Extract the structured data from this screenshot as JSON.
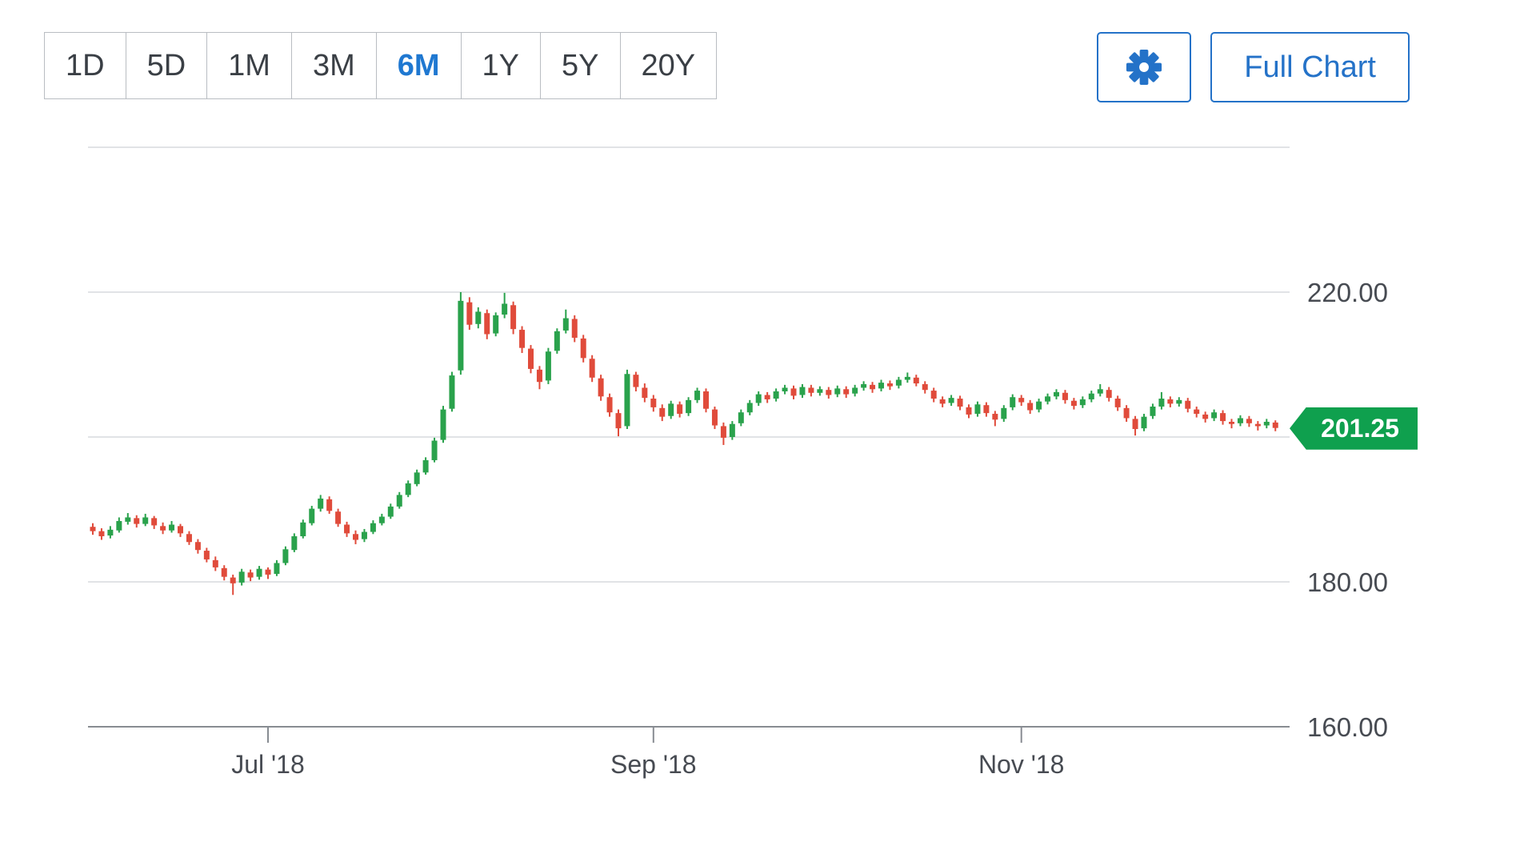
{
  "toolbar": {
    "ranges": [
      {
        "label": "1D",
        "active": false
      },
      {
        "label": "5D",
        "active": false
      },
      {
        "label": "1M",
        "active": false
      },
      {
        "label": "3M",
        "active": false
      },
      {
        "label": "6M",
        "active": true
      },
      {
        "label": "1Y",
        "active": false
      },
      {
        "label": "5Y",
        "active": false
      },
      {
        "label": "20Y",
        "active": false
      }
    ],
    "settings_icon": "gear-icon",
    "full_chart_label": "Full Chart"
  },
  "colors": {
    "up": "#2aa24c",
    "down": "#e04b3b",
    "badge": "#0fa04e",
    "accent_blue": "#2472c8",
    "active_range_blue": "#1f78d1",
    "grid": "#e1e3e6",
    "axis_line": "#888c92",
    "axis_text": "#474b52"
  },
  "chart_data": {
    "type": "candlestick",
    "selected_range": "6M",
    "ylim": [
      160,
      240
    ],
    "grid_levels": [
      240,
      220,
      200,
      180,
      160
    ],
    "y_tick_levels": [
      220,
      180,
      160
    ],
    "y_tick_labels": [
      "220.00",
      "180.00",
      "160.00"
    ],
    "x_tick_labels": [
      "Jul '18",
      "Sep '18",
      "Nov '18"
    ],
    "month_ticks": [
      {
        "date": "2018-07-02",
        "label": "Jul '18"
      },
      {
        "date": "2018-09-04",
        "label": "Sep '18"
      },
      {
        "date": "2018-11-01",
        "label": "Nov '18"
      }
    ],
    "last_price": "201.25",
    "last_price_value": 201.25,
    "legend_position": "none",
    "grid": true,
    "candles": [
      [
        "2018-06-04",
        187.6,
        188.1,
        186.5,
        187.0
      ],
      [
        "2018-06-05",
        187.0,
        187.4,
        185.8,
        186.3
      ],
      [
        "2018-06-06",
        186.4,
        187.7,
        186.0,
        187.2
      ],
      [
        "2018-06-07",
        187.1,
        188.9,
        186.8,
        188.4
      ],
      [
        "2018-06-08",
        188.3,
        189.5,
        187.9,
        188.9
      ],
      [
        "2018-06-11",
        188.8,
        189.2,
        187.5,
        188.0
      ],
      [
        "2018-06-12",
        188.0,
        189.4,
        187.7,
        188.9
      ],
      [
        "2018-06-13",
        188.8,
        189.1,
        187.3,
        187.8
      ],
      [
        "2018-06-14",
        187.7,
        188.2,
        186.6,
        187.1
      ],
      [
        "2018-06-15",
        187.1,
        188.4,
        186.8,
        187.9
      ],
      [
        "2018-06-18",
        187.7,
        188.0,
        186.2,
        186.7
      ],
      [
        "2018-06-19",
        186.6,
        187.0,
        185.1,
        185.5
      ],
      [
        "2018-06-20",
        185.5,
        185.9,
        183.9,
        184.4
      ],
      [
        "2018-06-21",
        184.3,
        184.7,
        182.7,
        183.1
      ],
      [
        "2018-06-22",
        183.0,
        183.5,
        181.5,
        182.0
      ],
      [
        "2018-06-25",
        181.9,
        182.3,
        180.2,
        180.7
      ],
      [
        "2018-06-26",
        180.6,
        181.0,
        178.2,
        179.8
      ],
      [
        "2018-06-27",
        179.9,
        181.8,
        179.5,
        181.4
      ],
      [
        "2018-06-28",
        181.3,
        181.7,
        180.1,
        180.6
      ],
      [
        "2018-06-29",
        180.7,
        182.2,
        180.3,
        181.8
      ],
      [
        "2018-07-02",
        181.7,
        182.0,
        180.4,
        181.0
      ],
      [
        "2018-07-03",
        181.1,
        183.0,
        180.8,
        182.6
      ],
      [
        "2018-07-05",
        182.6,
        184.9,
        182.3,
        184.5
      ],
      [
        "2018-07-06",
        184.4,
        186.7,
        184.1,
        186.3
      ],
      [
        "2018-07-09",
        186.3,
        188.6,
        186.0,
        188.2
      ],
      [
        "2018-07-10",
        188.1,
        190.5,
        187.8,
        190.1
      ],
      [
        "2018-07-11",
        190.1,
        192.0,
        189.7,
        191.5
      ],
      [
        "2018-07-12",
        191.4,
        191.8,
        189.4,
        189.8
      ],
      [
        "2018-07-13",
        189.7,
        190.1,
        187.6,
        188.0
      ],
      [
        "2018-07-16",
        187.9,
        188.3,
        186.2,
        186.7
      ],
      [
        "2018-07-17",
        186.6,
        187.1,
        185.2,
        185.8
      ],
      [
        "2018-07-18",
        185.9,
        187.3,
        185.5,
        186.9
      ],
      [
        "2018-07-19",
        186.9,
        188.5,
        186.6,
        188.1
      ],
      [
        "2018-07-20",
        188.1,
        189.4,
        187.8,
        189.0
      ],
      [
        "2018-07-23",
        189.0,
        190.8,
        188.7,
        190.4
      ],
      [
        "2018-07-24",
        190.4,
        192.4,
        190.1,
        192.0
      ],
      [
        "2018-07-25",
        192.0,
        194.0,
        191.7,
        193.6
      ],
      [
        "2018-07-26",
        193.5,
        195.5,
        193.2,
        195.1
      ],
      [
        "2018-07-27",
        195.1,
        197.2,
        194.8,
        196.8
      ],
      [
        "2018-07-30",
        196.8,
        199.9,
        196.5,
        199.5
      ],
      [
        "2018-07-31",
        199.6,
        204.3,
        199.2,
        203.8
      ],
      [
        "2018-08-01",
        203.9,
        209.0,
        203.5,
        208.5
      ],
      [
        "2018-08-02",
        209.2,
        220.0,
        208.6,
        218.8
      ],
      [
        "2018-08-03",
        218.6,
        219.3,
        214.8,
        215.5
      ],
      [
        "2018-08-06",
        215.6,
        217.9,
        215.0,
        217.3
      ],
      [
        "2018-08-07",
        217.1,
        217.6,
        213.5,
        214.2
      ],
      [
        "2018-08-08",
        214.3,
        217.2,
        213.9,
        216.8
      ],
      [
        "2018-08-09",
        216.9,
        219.9,
        216.4,
        218.4
      ],
      [
        "2018-08-10",
        218.2,
        218.7,
        214.2,
        214.9
      ],
      [
        "2018-08-13",
        214.8,
        215.3,
        211.6,
        212.3
      ],
      [
        "2018-08-14",
        212.2,
        212.7,
        208.8,
        209.4
      ],
      [
        "2018-08-15",
        209.3,
        209.8,
        206.6,
        207.6
      ],
      [
        "2018-08-16",
        207.8,
        212.3,
        207.3,
        211.8
      ],
      [
        "2018-08-17",
        211.9,
        215.0,
        211.5,
        214.6
      ],
      [
        "2018-08-20",
        214.7,
        217.6,
        214.3,
        216.4
      ],
      [
        "2018-08-21",
        216.3,
        216.8,
        213.1,
        213.7
      ],
      [
        "2018-08-22",
        213.6,
        214.1,
        210.3,
        210.9
      ],
      [
        "2018-08-23",
        210.8,
        211.3,
        207.6,
        208.2
      ],
      [
        "2018-08-24",
        208.1,
        208.6,
        205.0,
        205.6
      ],
      [
        "2018-08-27",
        205.5,
        206.0,
        202.8,
        203.4
      ],
      [
        "2018-08-28",
        203.3,
        203.8,
        200.1,
        201.2
      ],
      [
        "2018-08-29",
        201.5,
        209.3,
        201.1,
        208.7
      ],
      [
        "2018-08-30",
        208.6,
        209.0,
        206.3,
        206.9
      ],
      [
        "2018-08-31",
        206.8,
        207.4,
        204.8,
        205.4
      ],
      [
        "2018-09-04",
        205.3,
        205.8,
        203.5,
        204.1
      ],
      [
        "2018-09-05",
        204.0,
        204.5,
        202.2,
        202.8
      ],
      [
        "2018-09-06",
        202.9,
        205.0,
        202.5,
        204.6
      ],
      [
        "2018-09-07",
        204.5,
        204.9,
        202.7,
        203.2
      ],
      [
        "2018-09-10",
        203.3,
        205.5,
        202.9,
        205.1
      ],
      [
        "2018-09-11",
        205.1,
        206.8,
        204.7,
        206.4
      ],
      [
        "2018-09-12",
        206.3,
        206.7,
        203.4,
        203.9
      ],
      [
        "2018-09-13",
        203.8,
        204.2,
        201.1,
        201.6
      ],
      [
        "2018-09-14",
        201.5,
        202.0,
        198.9,
        199.9
      ],
      [
        "2018-09-17",
        200.0,
        202.2,
        199.6,
        201.8
      ],
      [
        "2018-09-18",
        201.9,
        203.8,
        201.5,
        203.4
      ],
      [
        "2018-09-19",
        203.4,
        205.1,
        203.0,
        204.7
      ],
      [
        "2018-09-20",
        204.7,
        206.3,
        204.3,
        205.9
      ],
      [
        "2018-09-21",
        205.8,
        206.2,
        204.7,
        205.2
      ],
      [
        "2018-09-24",
        205.3,
        206.7,
        204.9,
        206.3
      ],
      [
        "2018-09-25",
        206.3,
        207.2,
        205.9,
        206.8
      ],
      [
        "2018-09-26",
        206.7,
        207.1,
        205.2,
        205.7
      ],
      [
        "2018-09-27",
        205.8,
        207.3,
        205.4,
        206.9
      ],
      [
        "2018-09-28",
        206.8,
        207.2,
        205.6,
        206.1
      ],
      [
        "2018-10-01",
        206.1,
        207.0,
        205.7,
        206.6
      ],
      [
        "2018-10-02",
        206.5,
        206.9,
        205.3,
        205.8
      ],
      [
        "2018-10-03",
        205.9,
        207.1,
        205.5,
        206.7
      ],
      [
        "2018-10-04",
        206.6,
        207.0,
        205.4,
        205.9
      ],
      [
        "2018-10-05",
        206.0,
        207.2,
        205.6,
        206.8
      ],
      [
        "2018-10-08",
        206.8,
        207.7,
        206.4,
        207.3
      ],
      [
        "2018-10-09",
        207.2,
        207.6,
        206.1,
        206.6
      ],
      [
        "2018-10-10",
        206.7,
        207.9,
        206.3,
        207.5
      ],
      [
        "2018-10-11",
        207.4,
        207.8,
        206.5,
        207.0
      ],
      [
        "2018-10-12",
        207.1,
        208.3,
        206.7,
        207.9
      ],
      [
        "2018-10-15",
        207.9,
        208.9,
        207.5,
        208.3
      ],
      [
        "2018-10-16",
        208.2,
        208.6,
        207.0,
        207.4
      ],
      [
        "2018-10-17",
        207.3,
        207.7,
        206.0,
        206.5
      ],
      [
        "2018-10-18",
        206.4,
        206.8,
        204.8,
        205.3
      ],
      [
        "2018-10-19",
        205.2,
        205.6,
        204.1,
        204.6
      ],
      [
        "2018-10-22",
        204.7,
        205.8,
        204.3,
        205.4
      ],
      [
        "2018-10-23",
        205.3,
        205.7,
        203.7,
        204.2
      ],
      [
        "2018-10-24",
        204.1,
        204.5,
        202.6,
        203.1
      ],
      [
        "2018-10-25",
        203.2,
        204.9,
        202.8,
        204.5
      ],
      [
        "2018-10-26",
        204.4,
        204.8,
        202.8,
        203.3
      ],
      [
        "2018-10-29",
        203.2,
        203.6,
        201.5,
        202.4
      ],
      [
        "2018-10-30",
        202.5,
        204.4,
        202.1,
        204.0
      ],
      [
        "2018-10-31",
        204.1,
        205.9,
        203.7,
        205.5
      ],
      [
        "2018-11-01",
        205.4,
        205.8,
        204.3,
        204.8
      ],
      [
        "2018-11-02",
        204.7,
        205.1,
        203.2,
        203.7
      ],
      [
        "2018-11-05",
        203.8,
        205.3,
        203.4,
        204.9
      ],
      [
        "2018-11-06",
        204.9,
        206.0,
        204.5,
        205.6
      ],
      [
        "2018-11-07",
        205.6,
        206.6,
        205.2,
        206.2
      ],
      [
        "2018-11-08",
        206.1,
        206.5,
        204.6,
        205.1
      ],
      [
        "2018-11-09",
        205.0,
        205.4,
        203.8,
        204.3
      ],
      [
        "2018-11-12",
        204.4,
        205.6,
        204.0,
        205.2
      ],
      [
        "2018-11-13",
        205.2,
        206.4,
        204.8,
        206.0
      ],
      [
        "2018-11-14",
        206.0,
        207.3,
        205.6,
        206.6
      ],
      [
        "2018-11-15",
        206.5,
        206.9,
        204.9,
        205.4
      ],
      [
        "2018-11-16",
        205.3,
        205.7,
        203.6,
        204.1
      ],
      [
        "2018-11-19",
        204.0,
        204.4,
        202.1,
        202.6
      ],
      [
        "2018-11-20",
        202.5,
        202.9,
        200.2,
        201.1
      ],
      [
        "2018-11-21",
        201.2,
        203.2,
        200.8,
        202.8
      ],
      [
        "2018-11-23",
        202.9,
        204.6,
        202.5,
        204.2
      ],
      [
        "2018-11-26",
        204.2,
        206.2,
        203.8,
        205.3
      ],
      [
        "2018-11-27",
        205.2,
        205.6,
        204.1,
        204.6
      ],
      [
        "2018-11-28",
        204.6,
        205.5,
        204.2,
        205.1
      ],
      [
        "2018-11-29",
        205.0,
        205.4,
        203.4,
        203.9
      ],
      [
        "2018-11-30",
        203.8,
        204.2,
        202.7,
        203.2
      ],
      [
        "2018-12-03",
        203.1,
        203.5,
        202.0,
        202.5
      ],
      [
        "2018-12-04",
        202.6,
        203.8,
        202.2,
        203.4
      ],
      [
        "2018-12-06",
        203.3,
        203.7,
        201.7,
        202.2
      ],
      [
        "2018-12-07",
        202.1,
        202.5,
        201.2,
        201.8
      ],
      [
        "2018-12-10",
        201.9,
        203.0,
        201.5,
        202.6
      ],
      [
        "2018-12-11",
        202.5,
        202.9,
        201.4,
        201.9
      ],
      [
        "2018-12-12",
        201.8,
        202.2,
        200.9,
        201.5
      ],
      [
        "2018-12-13",
        201.6,
        202.5,
        201.2,
        202.1
      ],
      [
        "2018-12-14",
        202.0,
        202.3,
        200.8,
        201.25
      ]
    ]
  }
}
